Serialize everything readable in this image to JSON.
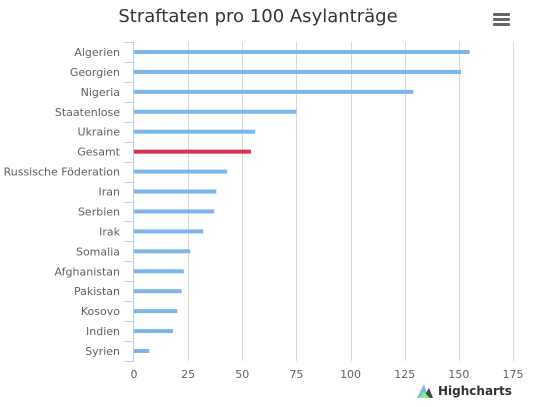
{
  "chart_data": {
    "type": "bar",
    "orientation": "horizontal",
    "title": "Straftaten pro 100 Asylanträge",
    "categories": [
      "Algerien",
      "Georgien",
      "Nigeria",
      "Staatenlose",
      "Ukraine",
      "Gesamt",
      "Russische Föderation",
      "Iran",
      "Serbien",
      "Irak",
      "Somalia",
      "Afghanistan",
      "Pakistan",
      "Kosovo",
      "Indien",
      "Syrien"
    ],
    "values": [
      155,
      151,
      129,
      75,
      56,
      54,
      43,
      38,
      37,
      32,
      26,
      23,
      22,
      20,
      18,
      7
    ],
    "highlight_category": "Gesamt",
    "colors": {
      "bar": "#7cb5ec",
      "highlight": "#d9314f"
    },
    "xlim": [
      0,
      175
    ],
    "xticks": [
      0,
      25,
      50,
      75,
      100,
      125,
      150,
      175
    ],
    "grid": true
  },
  "menu": {
    "icon": "hamburger-menu-icon"
  },
  "credits": {
    "label": "Highcharts",
    "icon": "highcharts-logo-icon"
  }
}
